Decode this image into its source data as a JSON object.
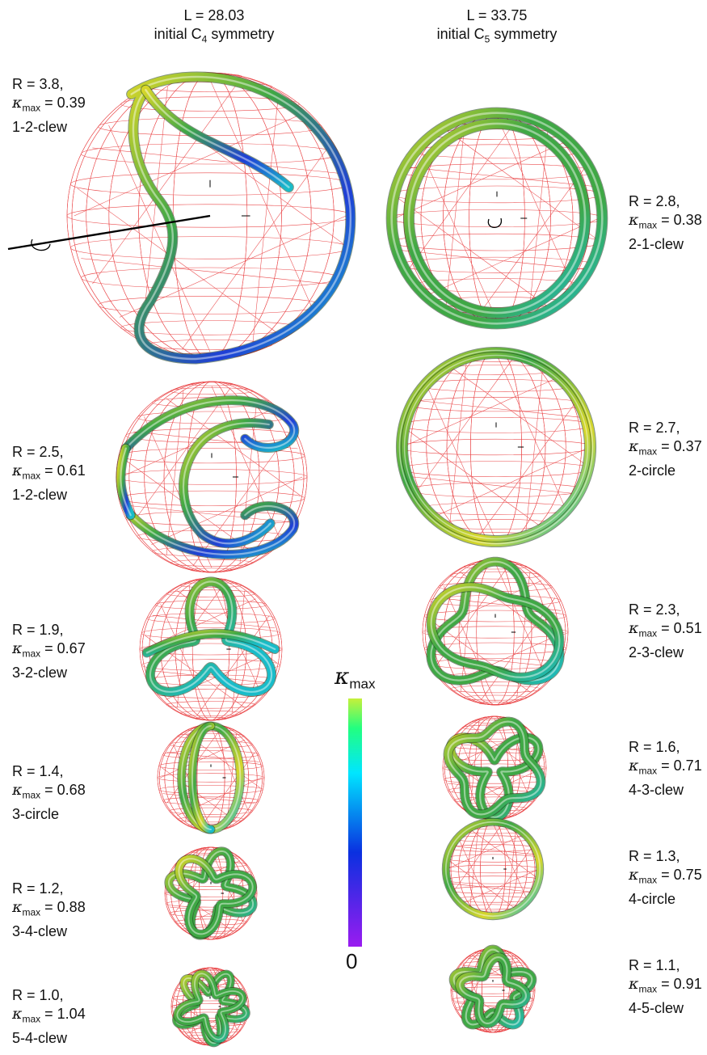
{
  "colors": {
    "wire": "#e8383a",
    "tube_green": "#3fa845",
    "tube_yellow": "#d6d62a",
    "tube_cyan": "#19bcc9",
    "tube_blue": "#1f3fd6",
    "colorbar_top": "#c6f03a",
    "colorbar_mid1": "#00e6ff",
    "colorbar_mid2": "#0a30e0",
    "colorbar_bottom": "#9a1cf0"
  },
  "columns": [
    {
      "line1": "L = 28.03",
      "line2_prefix": "initial C",
      "line2_sub": "4",
      "line2_suffix": " symmetry"
    },
    {
      "line1": "L = 33.75",
      "line2_prefix": "initial C",
      "line2_sub": "5",
      "line2_suffix": " symmetry"
    }
  ],
  "kappa_symbol": "κ",
  "kappa_sub": "max",
  "colorbar": {
    "max_label_symbol": "κ",
    "max_label_sub": "max",
    "min_label": "0"
  },
  "left_items": [
    {
      "r": "R = 3.8,",
      "kappa": "= 0.39",
      "type": "1-2-clew"
    },
    {
      "r": "R = 2.5,",
      "kappa": "= 0.61",
      "type": "1-2-clew"
    },
    {
      "r": "R = 1.9,",
      "kappa": "= 0.67",
      "type": "3-2-clew"
    },
    {
      "r": "R = 1.4,",
      "kappa": "= 0.68",
      "type": "3-circle"
    },
    {
      "r": "R = 1.2,",
      "kappa": "= 0.88",
      "type": "3-4-clew"
    },
    {
      "r": "R = 1.0,",
      "kappa": "= 1.04",
      "type": "5-4-clew"
    }
  ],
  "right_items": [
    {
      "r": "R = 2.8,",
      "kappa": "= 0.38",
      "type": "2-1-clew"
    },
    {
      "r": "R = 2.7,",
      "kappa": "= 0.37",
      "type": "2-circle"
    },
    {
      "r": "R = 2.3,",
      "kappa": "= 0.51",
      "type": "2-3-clew"
    },
    {
      "r": "R = 1.6,",
      "kappa": "= 0.71",
      "type": "4-3-clew"
    },
    {
      "r": "R = 1.3,",
      "kappa": "= 0.75",
      "type": "4-circle"
    },
    {
      "r": "R = 1.1,",
      "kappa": "= 0.91",
      "type": "4-5-clew"
    }
  ]
}
